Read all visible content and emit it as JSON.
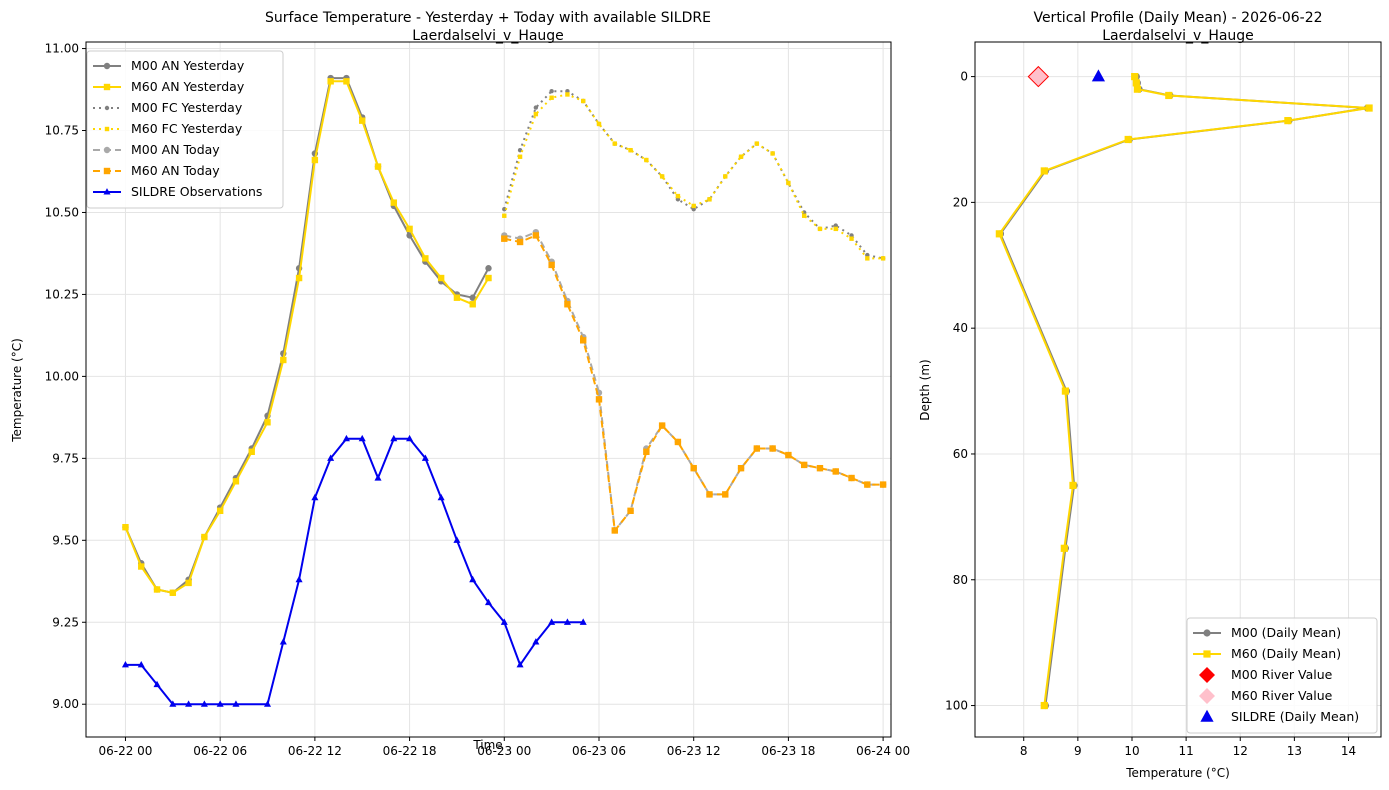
{
  "chart_data": [
    {
      "type": "line",
      "title": "Surface Temperature - Yesterday + Today with available SILDRE",
      "subtitle": "Laerdalselvi_v_Hauge",
      "xlabel": "Time",
      "ylabel": "Temperature (°C)",
      "x_unit": "hours since 06-22 00:00",
      "xlim": [
        -2.5,
        48.5
      ],
      "ylim": [
        8.9,
        11.02
      ],
      "grid": true,
      "legend_position": "top-left",
      "x_ticks": [
        {
          "label": "06-22 00",
          "value": 0
        },
        {
          "label": "06-22 06",
          "value": 6
        },
        {
          "label": "06-22 12",
          "value": 12
        },
        {
          "label": "06-22 18",
          "value": 18
        },
        {
          "label": "06-23 00",
          "value": 24
        },
        {
          "label": "06-23 06",
          "value": 30
        },
        {
          "label": "06-23 12",
          "value": 36
        },
        {
          "label": "06-23 18",
          "value": 42
        },
        {
          "label": "06-24 00",
          "value": 48
        }
      ],
      "y_ticks": [
        {
          "label": "9.00",
          "value": 9.0
        },
        {
          "label": "9.25",
          "value": 9.25
        },
        {
          "label": "9.50",
          "value": 9.5
        },
        {
          "label": "9.75",
          "value": 9.75
        },
        {
          "label": "10.00",
          "value": 10.0
        },
        {
          "label": "10.25",
          "value": 10.25
        },
        {
          "label": "10.50",
          "value": 10.5
        },
        {
          "label": "10.75",
          "value": 10.75
        },
        {
          "label": "11.00",
          "value": 11.0
        }
      ],
      "series": [
        {
          "name": "M00 AN Yesterday",
          "color": "#808080",
          "dash": "solid",
          "marker": "circle",
          "width": 2,
          "x": [
            0,
            1,
            2,
            3,
            4,
            5,
            6,
            7,
            8,
            9,
            10,
            11,
            12,
            13,
            14,
            15,
            16,
            17,
            18,
            19,
            20,
            21,
            22,
            23
          ],
          "y": [
            9.54,
            9.43,
            9.35,
            9.34,
            9.38,
            9.51,
            9.6,
            9.69,
            9.78,
            9.88,
            10.07,
            10.33,
            10.68,
            10.91,
            10.91,
            10.79,
            10.64,
            10.52,
            10.43,
            10.35,
            10.29,
            10.25,
            10.24,
            10.33
          ]
        },
        {
          "name": "M60 AN Yesterday",
          "color": "#ffd700",
          "dash": "solid",
          "marker": "square",
          "width": 2,
          "x": [
            0,
            1,
            2,
            3,
            4,
            5,
            6,
            7,
            8,
            9,
            10,
            11,
            12,
            13,
            14,
            15,
            16,
            17,
            18,
            19,
            20,
            21,
            22,
            23
          ],
          "y": [
            9.54,
            9.42,
            9.35,
            9.34,
            9.37,
            9.51,
            9.59,
            9.68,
            9.77,
            9.86,
            10.05,
            10.3,
            10.66,
            10.9,
            10.9,
            10.78,
            10.64,
            10.53,
            10.45,
            10.36,
            10.3,
            10.24,
            10.22,
            10.3
          ]
        },
        {
          "name": "M00 FC Yesterday",
          "color": "#808080",
          "dash": "dotted",
          "marker": "circle",
          "width": 2,
          "x": [
            24,
            25,
            26,
            27,
            28,
            29,
            30,
            31,
            32,
            33,
            34,
            35,
            36,
            37,
            38,
            39,
            40,
            41,
            42,
            43,
            44,
            45,
            46,
            47,
            48
          ],
          "y": [
            10.51,
            10.69,
            10.82,
            10.87,
            10.87,
            10.84,
            10.77,
            10.71,
            10.69,
            10.66,
            10.61,
            10.54,
            10.51,
            10.54,
            10.61,
            10.67,
            10.71,
            10.68,
            10.59,
            10.5,
            10.45,
            10.46,
            10.43,
            10.37,
            10.36
          ]
        },
        {
          "name": "M60 FC Yesterday",
          "color": "#ffd700",
          "dash": "dotted",
          "marker": "square",
          "width": 2,
          "x": [
            24,
            25,
            26,
            27,
            28,
            29,
            30,
            31,
            32,
            33,
            34,
            35,
            36,
            37,
            38,
            39,
            40,
            41,
            42,
            43,
            44,
            45,
            46,
            47,
            48
          ],
          "y": [
            10.49,
            10.67,
            10.8,
            10.85,
            10.86,
            10.84,
            10.77,
            10.71,
            10.69,
            10.66,
            10.61,
            10.55,
            10.52,
            10.54,
            10.61,
            10.67,
            10.71,
            10.68,
            10.59,
            10.49,
            10.45,
            10.45,
            10.42,
            10.36,
            10.36
          ]
        },
        {
          "name": "M00 AN Today",
          "color": "#a9a9a9",
          "dash": "dashed",
          "marker": "circle",
          "width": 2,
          "x": [
            24,
            25,
            26,
            27,
            28,
            29,
            30,
            31,
            32,
            33,
            34,
            35,
            36,
            37,
            38,
            39,
            40,
            41,
            42,
            43,
            44,
            45,
            46,
            47,
            48
          ],
          "y": [
            10.43,
            10.42,
            10.44,
            10.35,
            10.23,
            10.12,
            9.95,
            9.53,
            9.59,
            9.78,
            9.85,
            9.8,
            9.72,
            9.64,
            9.64,
            9.72,
            9.78,
            9.78,
            9.76,
            9.73,
            9.72,
            9.71,
            9.69,
            9.67,
            9.67
          ]
        },
        {
          "name": "M60 AN Today",
          "color": "#ffa500",
          "dash": "dashed",
          "marker": "square",
          "width": 2,
          "x": [
            24,
            25,
            26,
            27,
            28,
            29,
            30,
            31,
            32,
            33,
            34,
            35,
            36,
            37,
            38,
            39,
            40,
            41,
            42,
            43,
            44,
            45,
            46,
            47,
            48
          ],
          "y": [
            10.42,
            10.41,
            10.43,
            10.34,
            10.22,
            10.11,
            9.93,
            9.53,
            9.59,
            9.77,
            9.85,
            9.8,
            9.72,
            9.64,
            9.64,
            9.72,
            9.78,
            9.78,
            9.76,
            9.73,
            9.72,
            9.71,
            9.69,
            9.67,
            9.67
          ]
        },
        {
          "name": "SILDRE Observations",
          "color": "#0000ee",
          "dash": "solid",
          "marker": "triangle",
          "width": 2,
          "x": [
            0,
            1,
            2,
            3,
            4,
            5,
            6,
            7,
            9,
            10,
            11,
            12,
            13,
            14,
            15,
            16,
            17,
            18,
            19,
            20,
            21,
            22,
            23,
            24,
            25,
            26,
            27,
            28,
            29
          ],
          "y": [
            9.12,
            9.12,
            9.06,
            9.0,
            9.0,
            9.0,
            9.0,
            9.0,
            9.0,
            9.19,
            9.38,
            9.63,
            9.75,
            9.81,
            9.81,
            9.69,
            9.81,
            9.81,
            9.75,
            9.63,
            9.5,
            9.38,
            9.31,
            9.25,
            9.12,
            9.19,
            9.25,
            9.25,
            9.25
          ]
        }
      ]
    },
    {
      "type": "line",
      "title": "Vertical Profile (Daily Mean) - 2026-06-22",
      "subtitle": "Laerdalselvi_v_Hauge",
      "xlabel": "Temperature (°C)",
      "ylabel": "Depth (m)",
      "xlim": [
        7.1,
        14.6
      ],
      "ylim": [
        105,
        -5.5
      ],
      "y_inverted": true,
      "grid": true,
      "legend_position": "bottom-right",
      "x_ticks": [
        {
          "label": "8",
          "value": 8
        },
        {
          "label": "9",
          "value": 9
        },
        {
          "label": "10",
          "value": 10
        },
        {
          "label": "11",
          "value": 11
        },
        {
          "label": "12",
          "value": 12
        },
        {
          "label": "13",
          "value": 13
        },
        {
          "label": "14",
          "value": 14
        }
      ],
      "y_ticks": [
        {
          "label": "0",
          "value": 0
        },
        {
          "label": "20",
          "value": 20
        },
        {
          "label": "40",
          "value": 40
        },
        {
          "label": "60",
          "value": 60
        },
        {
          "label": "80",
          "value": 80
        },
        {
          "label": "100",
          "value": 100
        }
      ],
      "series": [
        {
          "name": "M00 (Daily Mean)",
          "color": "#808080",
          "marker": "circle",
          "width": 2,
          "temperature": [
            10.08,
            10.1,
            10.13,
            10.7,
            14.35,
            12.9,
            9.95,
            8.4,
            7.57,
            8.79,
            8.93,
            8.77,
            8.4
          ],
          "depth": [
            0,
            1,
            2,
            3,
            5,
            7,
            10,
            15,
            25,
            50,
            65,
            75,
            100
          ]
        },
        {
          "name": "M60 (Daily Mean)",
          "color": "#ffd700",
          "marker": "square",
          "width": 2,
          "temperature": [
            10.05,
            10.08,
            10.1,
            10.68,
            14.38,
            12.88,
            9.93,
            8.38,
            7.55,
            8.77,
            8.91,
            8.75,
            8.38
          ],
          "depth": [
            0,
            1,
            2,
            3,
            5,
            7,
            10,
            15,
            25,
            50,
            65,
            75,
            100
          ]
        },
        {
          "name": "M00 River Value",
          "color": "#ff0000",
          "marker": "diamond",
          "temperature": [
            8.27
          ],
          "depth": [
            0
          ]
        },
        {
          "name": "M60 River Value",
          "color": "#ffc0cb",
          "marker": "diamond",
          "temperature": [
            8.27
          ],
          "depth": [
            0
          ]
        },
        {
          "name": "SILDRE (Daily Mean)",
          "color": "#0000ee",
          "marker": "triangle",
          "temperature": [
            9.38
          ],
          "depth": [
            0
          ]
        }
      ]
    }
  ]
}
